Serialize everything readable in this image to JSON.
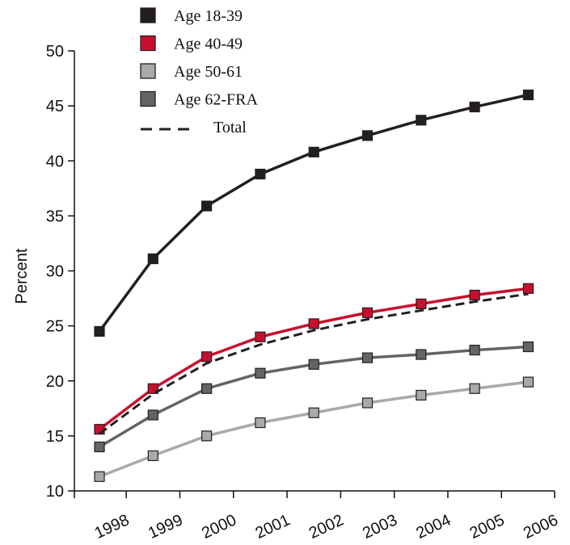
{
  "chart_data": {
    "type": "line",
    "title": "",
    "xlabel": "",
    "ylabel": "Percent",
    "ylim": [
      10,
      50
    ],
    "yticks": [
      10,
      15,
      20,
      25,
      30,
      35,
      40,
      45,
      50
    ],
    "categories": [
      "1998",
      "1999",
      "2000",
      "2001",
      "2002",
      "2003",
      "2004",
      "2005",
      "2006"
    ],
    "grid": false,
    "legend_position": "top",
    "series": [
      {
        "name": "Age 18-39",
        "color": "#231f20",
        "marker": "square",
        "dash": false,
        "values": [
          24.5,
          31.1,
          35.9,
          38.8,
          40.8,
          42.3,
          43.7,
          44.9,
          46.0
        ]
      },
      {
        "name": "Age 40-49",
        "color": "#c8102e",
        "marker": "square",
        "dash": false,
        "values": [
          15.6,
          19.3,
          22.2,
          24.0,
          25.2,
          26.2,
          27.0,
          27.8,
          28.4
        ]
      },
      {
        "name": "Age 50-61",
        "color": "#a7a9ac",
        "marker": "square",
        "dash": false,
        "values": [
          11.3,
          13.2,
          15.0,
          16.2,
          17.1,
          18.0,
          18.7,
          19.3,
          19.9
        ]
      },
      {
        "name": "Age 62-FRA",
        "color": "#636466",
        "marker": "square",
        "dash": false,
        "values": [
          14.0,
          16.9,
          19.3,
          20.7,
          21.5,
          22.1,
          22.4,
          22.8,
          23.1
        ]
      },
      {
        "name": "Total",
        "color": "#231f20",
        "marker": "none",
        "dash": true,
        "values": [
          15.2,
          18.8,
          21.6,
          23.3,
          24.6,
          25.6,
          26.4,
          27.2,
          27.9
        ]
      }
    ]
  }
}
